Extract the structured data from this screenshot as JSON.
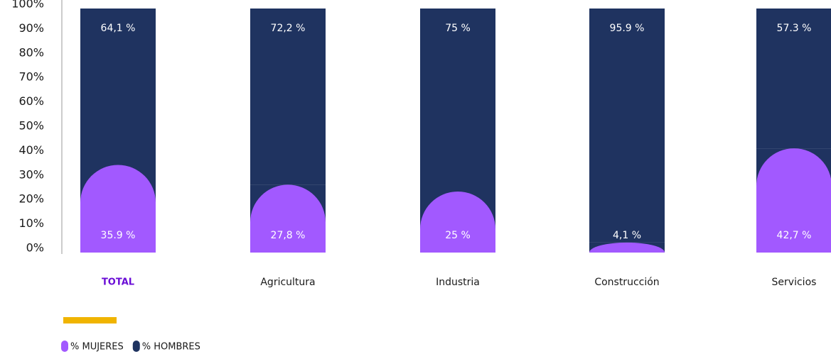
{
  "chart_data": {
    "type": "stacked_bar",
    "categories": [
      "TOTAL",
      "Agricultura",
      "Industria",
      "Construcción",
      "Servicios"
    ],
    "series": [
      {
        "name": "% MUJERES",
        "color": "#a259ff",
        "values": [
          35.9,
          27.8,
          25,
          4.1,
          42.7
        ],
        "value_labels": [
          "35.9 %",
          "27,8 %",
          "25 %",
          "4,1 %",
          "42,7 %"
        ]
      },
      {
        "name": "% HOMBRES",
        "color": "#1f3360",
        "values": [
          64.1,
          72.2,
          75,
          95.9,
          57.3
        ],
        "value_labels": [
          "64,1 %",
          "72,2 %",
          "75 %",
          "95.9 %",
          "57.3 %"
        ]
      }
    ],
    "ylim": [
      0,
      100
    ],
    "yticks": [
      {
        "value": 0,
        "label": "0%"
      },
      {
        "value": 10,
        "label": "10%"
      },
      {
        "value": 20,
        "label": "20%"
      },
      {
        "value": 30,
        "label": "30%"
      },
      {
        "value": 40,
        "label": "40%"
      },
      {
        "value": 50,
        "label": "50%"
      },
      {
        "value": 60,
        "label": "60%"
      },
      {
        "value": 70,
        "label": "70%"
      },
      {
        "value": 80,
        "label": "80%"
      },
      {
        "value": 90,
        "label": "90%"
      },
      {
        "value": 100,
        "label": "100%"
      }
    ],
    "grid": false
  }
}
